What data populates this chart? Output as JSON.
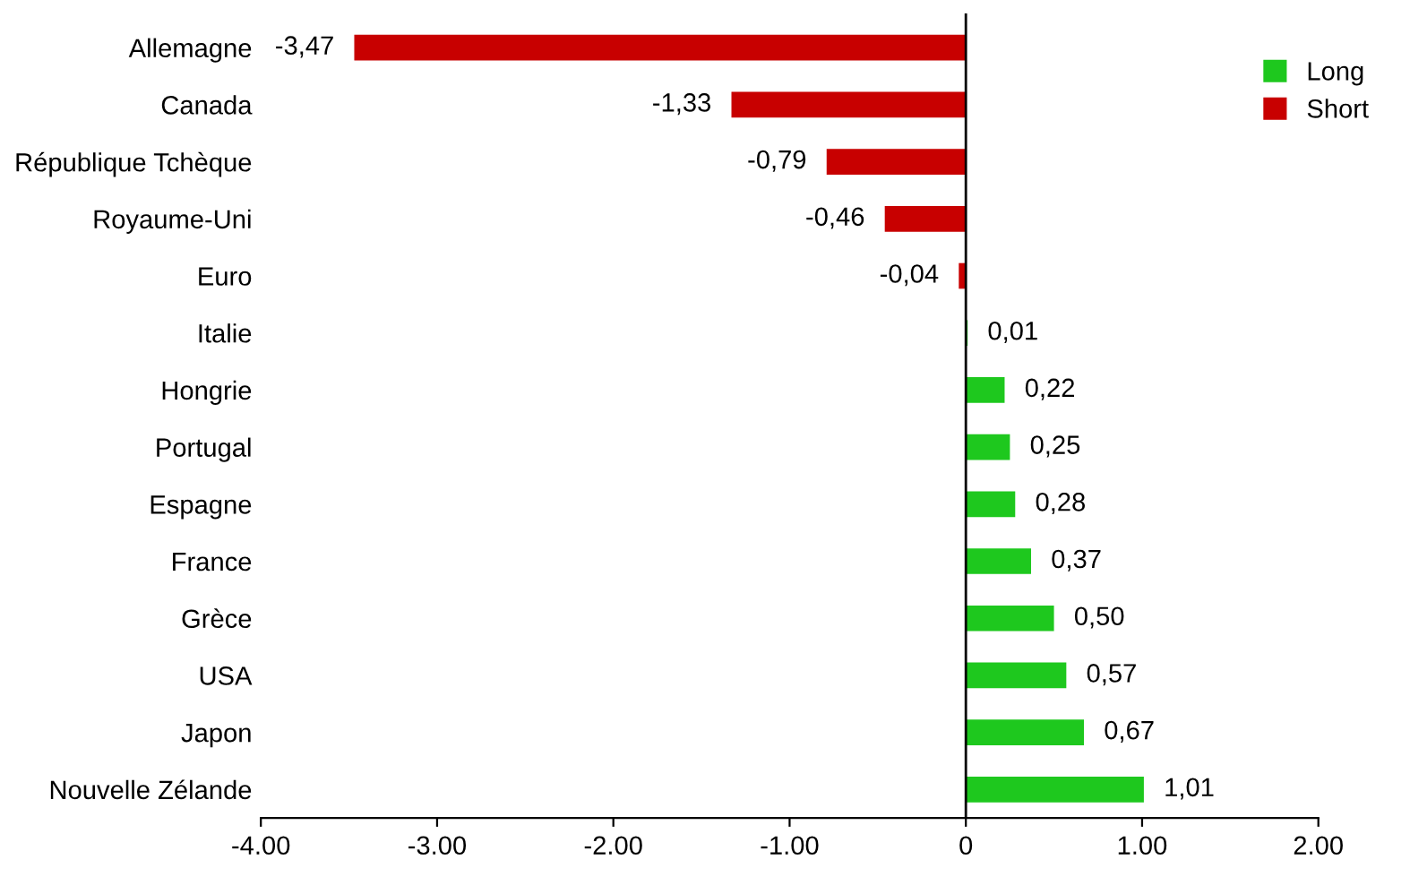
{
  "chart_data": {
    "type": "bar",
    "orientation": "horizontal",
    "categories": [
      "Allemagne",
      "Canada",
      "République Tchèque",
      "Royaume-Uni",
      "Euro",
      "Italie",
      "Hongrie",
      "Portugal",
      "Espagne",
      "France",
      "Grèce",
      "USA",
      "Japon",
      "Nouvelle Zélande"
    ],
    "series": [
      {
        "name": "Long",
        "color": "#1ec81e",
        "values": [
          null,
          null,
          null,
          null,
          null,
          0.01,
          0.22,
          0.25,
          0.28,
          0.37,
          0.5,
          0.57,
          0.67,
          1.01
        ],
        "value_labels": [
          null,
          null,
          null,
          null,
          null,
          "0,01",
          "0,22",
          "0,25",
          "0,28",
          "0,37",
          "0,50",
          "0,57",
          "0,67",
          "1,01"
        ]
      },
      {
        "name": "Short",
        "color": "#c80000",
        "values": [
          -3.47,
          -1.33,
          -0.79,
          -0.46,
          -0.04,
          null,
          null,
          null,
          null,
          null,
          null,
          null,
          null,
          null
        ],
        "value_labels": [
          "-3,47",
          "-1,33",
          "-0,79",
          "-0,46",
          "-0,04",
          null,
          null,
          null,
          null,
          null,
          null,
          null,
          null,
          null
        ]
      }
    ],
    "xlim": [
      -4,
      2
    ],
    "xticks": [
      {
        "value": -4,
        "label": "-4.00"
      },
      {
        "value": -3,
        "label": "-3.00"
      },
      {
        "value": -2,
        "label": "-2.00"
      },
      {
        "value": -1,
        "label": "-1.00"
      },
      0,
      {
        "value": 1,
        "label": "1.00"
      },
      {
        "value": 2,
        "label": "2.00"
      }
    ],
    "ref_lines": [
      {
        "axis": "x",
        "value": 0,
        "color": "#000000"
      }
    ],
    "grid": false,
    "legend": "top right"
  }
}
